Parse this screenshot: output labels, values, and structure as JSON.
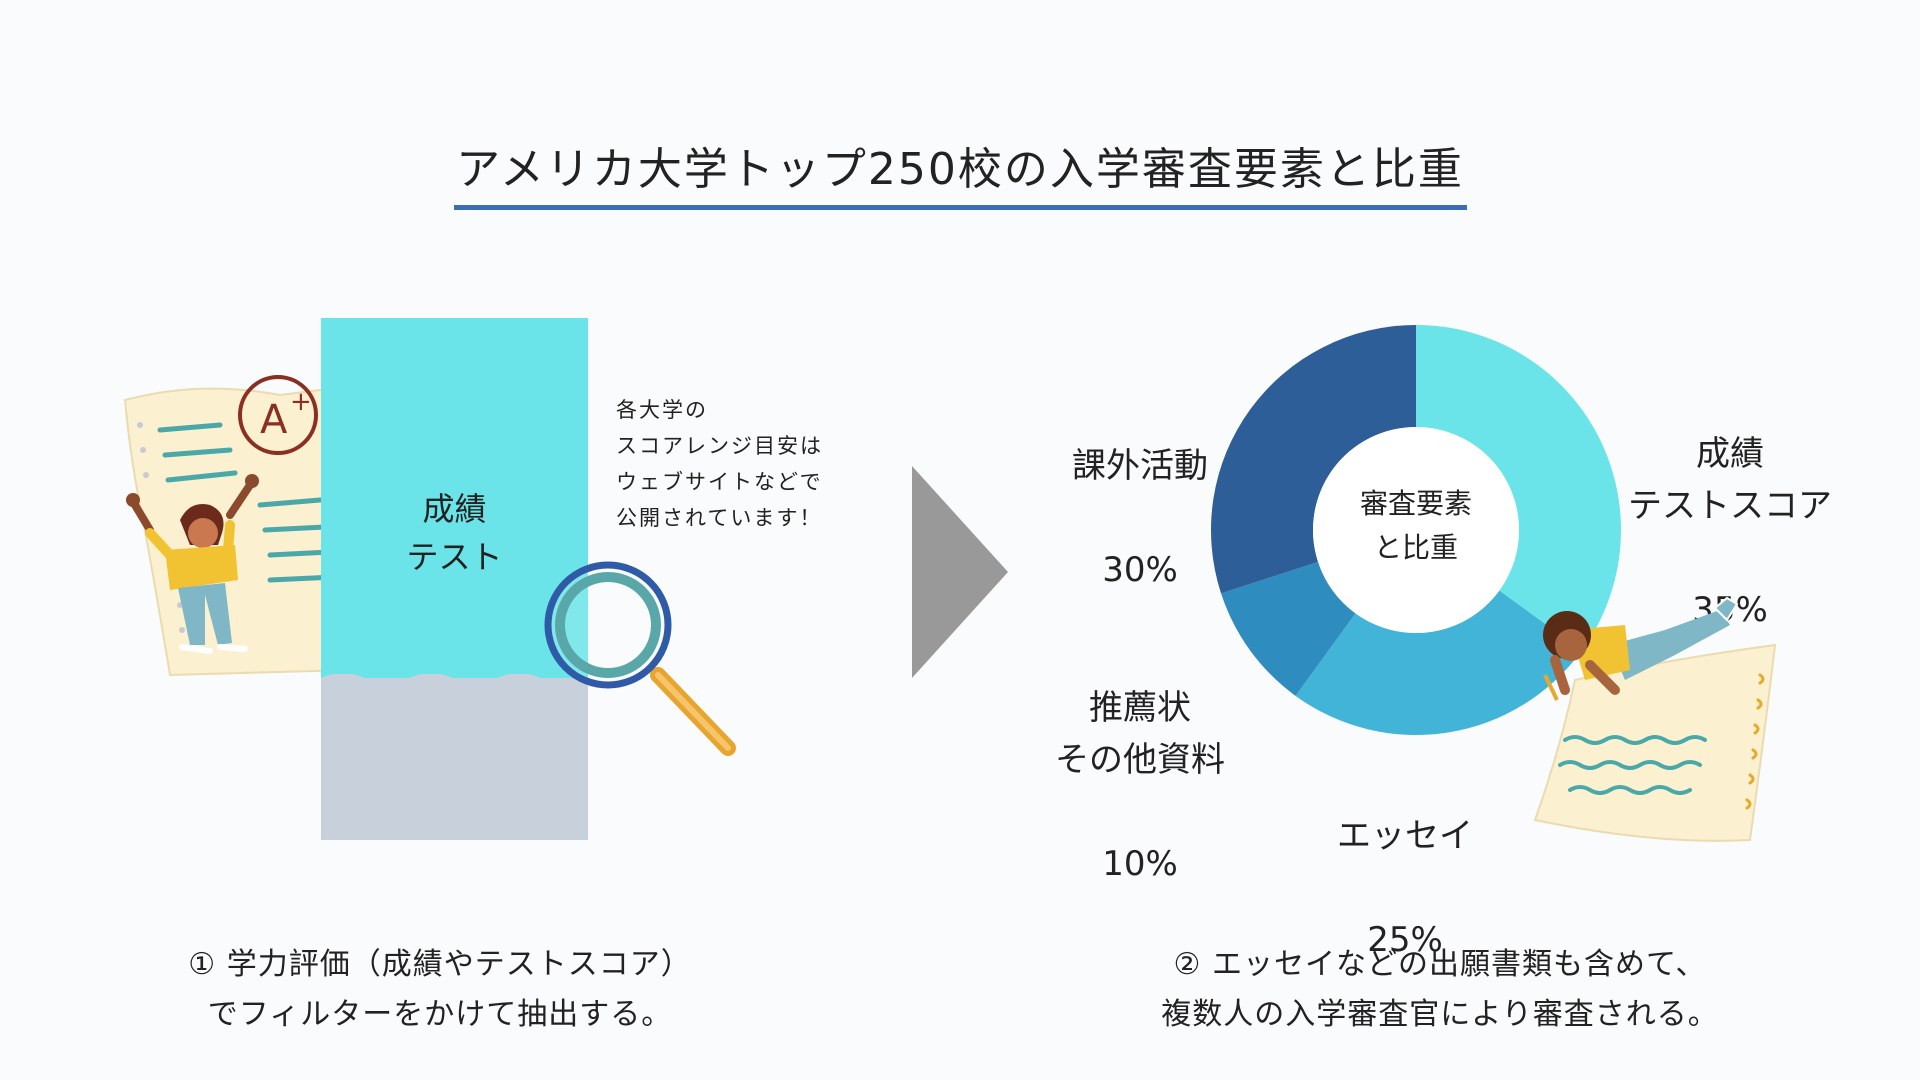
{
  "title": "アメリカ大学トップ250校の入学審査要素と比重",
  "left": {
    "filter_label": "成績\nテスト",
    "note": "各大学の\nスコアレンジ目安は\nウェブサイトなどで\n公開されています！",
    "caption_line1": "① 学力評価（成績やテストスコア）",
    "caption_line2": "でフィルターをかけて抽出する。"
  },
  "right": {
    "center_label": "審査要素\nと比重",
    "caption_line1": "② エッセイなどの出願書類も含めて、",
    "caption_line2": "複数人の入学審査官により審査される。"
  },
  "chart_data": {
    "type": "pie",
    "donut": true,
    "title": "審査要素と比重",
    "unit": "%",
    "slices": [
      {
        "label": "成績\nテストスコア",
        "value": 35,
        "value_text": "35%",
        "color": "#6ae4e8"
      },
      {
        "label": "エッセイ",
        "value": 25,
        "value_text": "25%",
        "color": "#42b4d8"
      },
      {
        "label": "推薦状\nその他資料",
        "value": 10,
        "value_text": "10%",
        "color": "#2f8cbf"
      },
      {
        "label": "課外活動",
        "value": 30,
        "value_text": "30%",
        "color": "#2e5e98"
      }
    ]
  },
  "colors": {
    "accent": "#3b6db3",
    "filter_top": "#6ae4e8",
    "filter_bottom": "#c8d0db",
    "arrow": "#999999"
  },
  "icons": {
    "student_left": "student-with-a-plus-paper-icon",
    "student_right": "student-writing-icon",
    "magnifier": "magnifying-glass-icon",
    "arrow": "triangle-right-icon"
  }
}
